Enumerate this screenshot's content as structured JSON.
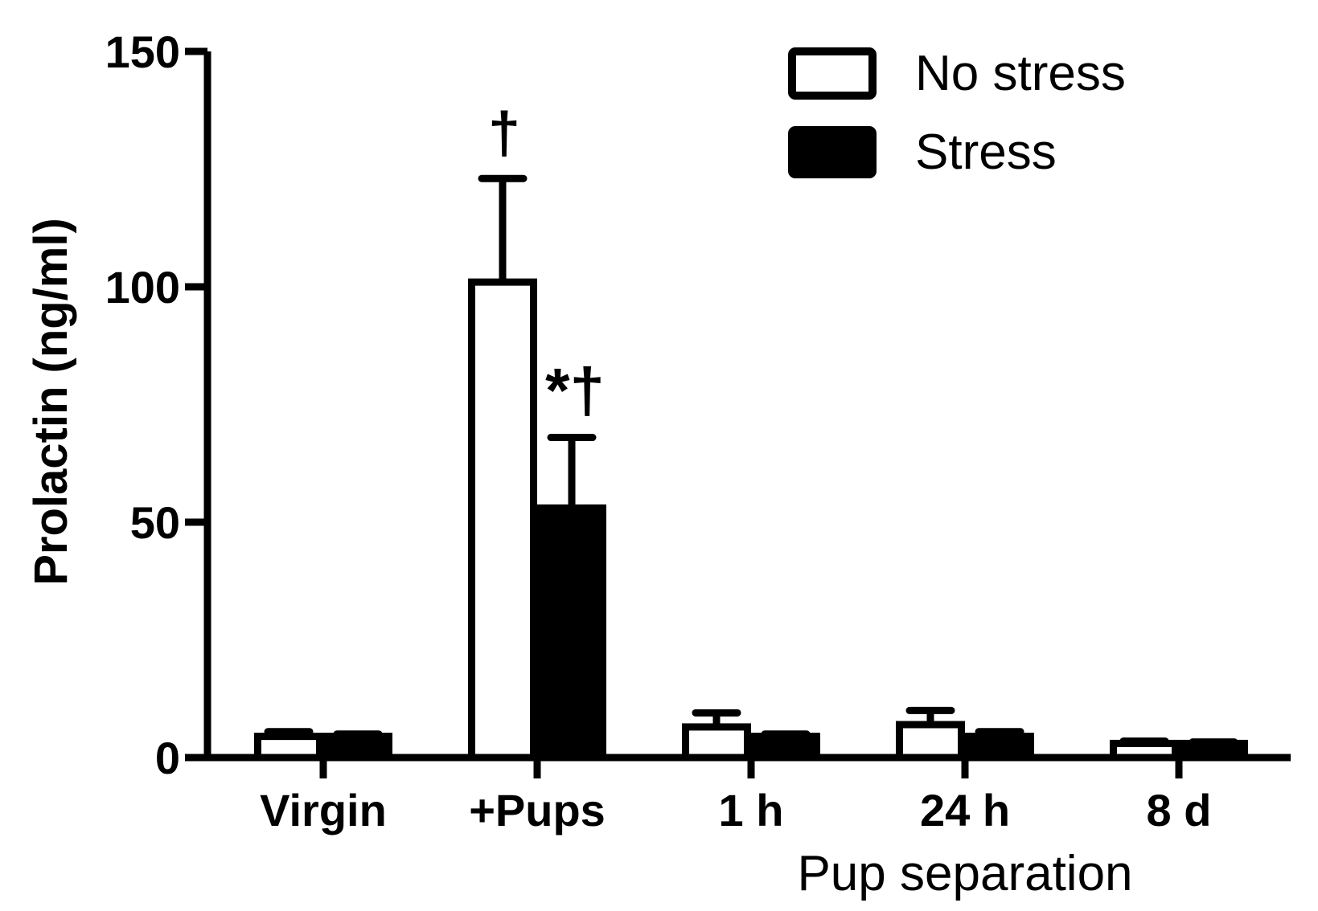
{
  "chart_data": {
    "type": "bar",
    "categories": [
      "Virgin",
      "+Pups",
      "1 h",
      "24 h",
      "8 d"
    ],
    "category_group_label": "Pup separation",
    "series": [
      {
        "name": "No stress",
        "fill": "#ffffff",
        "values": [
          4.5,
          101,
          6.5,
          7,
          3
        ],
        "errors": [
          1,
          22,
          3,
          3,
          0.5
        ]
      },
      {
        "name": "Stress",
        "fill": "#000000",
        "values": [
          4.5,
          53,
          4.5,
          4.5,
          3
        ],
        "errors": [
          0.5,
          15,
          0.5,
          1,
          0.3
        ]
      }
    ],
    "annotations": [
      {
        "category_index": 1,
        "series_index": 0,
        "text": "†"
      },
      {
        "category_index": 1,
        "series_index": 1,
        "text": "*†"
      }
    ],
    "ylabel": "Prolactin (ng/ml)",
    "xlabel": "",
    "ylim": [
      0,
      150
    ],
    "yticks": [
      0,
      50,
      100,
      150
    ],
    "legend_position": "top-right",
    "grid": false
  }
}
